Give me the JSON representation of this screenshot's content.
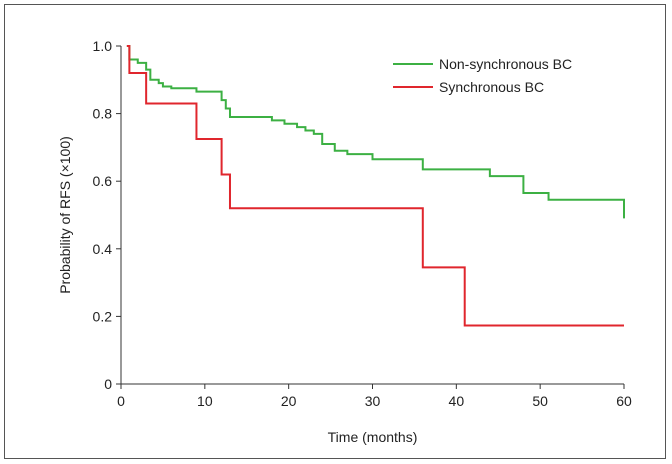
{
  "chart_data": {
    "type": "line",
    "step": true,
    "title": "",
    "xlabel": "Time (months)",
    "ylabel": "Probability of RFS (×100)",
    "xlim": [
      0,
      60
    ],
    "ylim": [
      0,
      1.0
    ],
    "xticks": [
      0,
      10,
      20,
      30,
      40,
      50,
      60
    ],
    "yticks": [
      0,
      0.2,
      0.4,
      0.6,
      0.8,
      1.0
    ],
    "xtick_labels": [
      "0",
      "10",
      "20",
      "30",
      "40",
      "50",
      "60"
    ],
    "ytick_labels": [
      "0",
      "0.2",
      "0.4",
      "0.6",
      "0.8",
      "1.0"
    ],
    "grid": false,
    "legend_position": "top-right",
    "series": [
      {
        "name": "Non-synchronous BC",
        "color": "#3cb043",
        "x": [
          0.7,
          1.0,
          2.0,
          3.0,
          3.5,
          4.5,
          5.0,
          6.0,
          8.0,
          9.0,
          12.0,
          12.5,
          13.0,
          15.0,
          18.0,
          19.5,
          21.0,
          22.0,
          23.0,
          24.0,
          25.5,
          27.0,
          28.0,
          30.0,
          36.0,
          40.0,
          44.0,
          48.0,
          51.0,
          60.0,
          60.0
        ],
        "y": [
          1.0,
          0.96,
          0.95,
          0.93,
          0.9,
          0.89,
          0.88,
          0.875,
          0.875,
          0.865,
          0.84,
          0.815,
          0.79,
          0.79,
          0.78,
          0.77,
          0.76,
          0.75,
          0.74,
          0.71,
          0.69,
          0.68,
          0.68,
          0.665,
          0.635,
          0.635,
          0.615,
          0.565,
          0.545,
          0.545,
          0.49
        ]
      },
      {
        "name": "Synchronous BC",
        "color": "#e0262d",
        "x": [
          0.7,
          1.0,
          3.0,
          9.0,
          12.0,
          13.0,
          36.0,
          41.0,
          60.0
        ],
        "y": [
          1.0,
          0.92,
          0.83,
          0.725,
          0.62,
          0.52,
          0.345,
          0.173,
          0.173
        ]
      }
    ]
  }
}
